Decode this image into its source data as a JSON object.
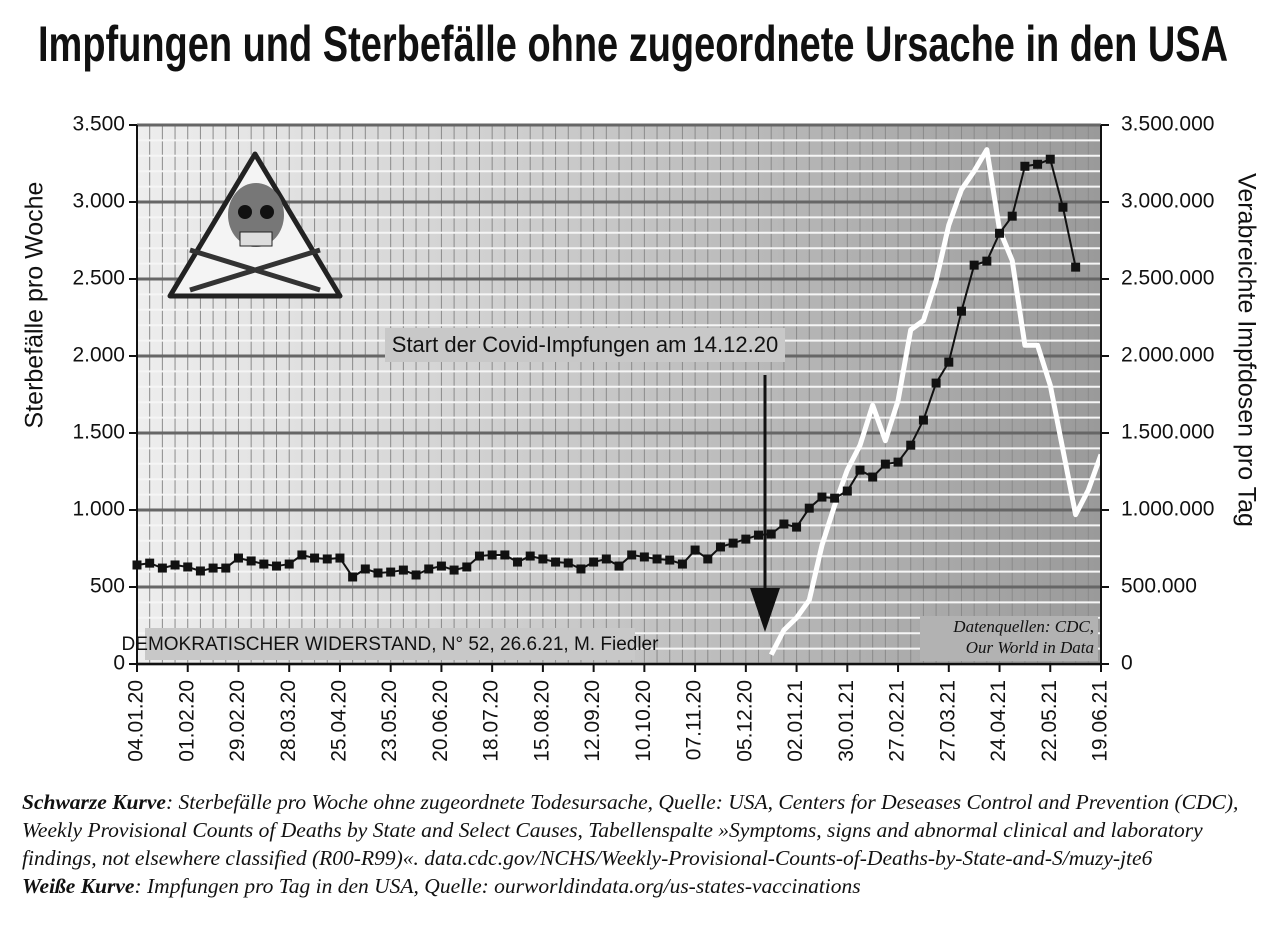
{
  "chart_data": {
    "type": "line",
    "title": "Impfungen und Sterbefälle ohne zugeordnete Ursache in den USA",
    "ylabel": "Sterbefälle pro Woche",
    "y2label": "Verabreichte Impfdosen pro Tag",
    "annotation": "Start der Covid-Impfungen am 14.12.20",
    "credit": "DEMOKRATISCHER WIDERSTAND, N° 52, 26.6.21, M. Fiedler",
    "source": [
      "Datenquellen: CDC,",
      "Our World in Data"
    ],
    "categories": [
      "04.01.20",
      null,
      null,
      null,
      "01.02.20",
      null,
      null,
      null,
      "29.02.20",
      null,
      null,
      null,
      "28.03.20",
      null,
      null,
      null,
      "25.04.20",
      null,
      null,
      null,
      "23.05.20",
      null,
      null,
      null,
      "20.06.20",
      null,
      null,
      null,
      "18.07.20",
      null,
      null,
      null,
      "15.08.20",
      null,
      null,
      null,
      "12.09.20",
      null,
      null,
      null,
      "10.10.20",
      null,
      null,
      null,
      "07.11.20",
      null,
      null,
      null,
      "05.12.20",
      null,
      null,
      null,
      "02.01.21",
      null,
      null,
      null,
      "30.01.21",
      null,
      null,
      null,
      "27.02.21",
      null,
      null,
      null,
      "27.03.21",
      null,
      null,
      null,
      "24.04.21",
      null,
      null,
      null,
      "22.05.21",
      null,
      null,
      null,
      "19.06.21"
    ],
    "series": [
      {
        "name": "Schwarze Kurve",
        "color": "#111111",
        "values": [
          643,
          655,
          623,
          643,
          630,
          604,
          623,
          623,
          688,
          669,
          649,
          636,
          649,
          708,
          688,
          682,
          688,
          565,
          617,
          591,
          597,
          610,
          578,
          617,
          636,
          610,
          630,
          701,
          708,
          708,
          662,
          701,
          682,
          662,
          656,
          617,
          662,
          682,
          636,
          708,
          695,
          682,
          675,
          649,
          740,
          682,
          760,
          785,
          811,
          837,
          844,
          909,
          889,
          1012,
          1084,
          1077,
          1123,
          1259,
          1214,
          1298,
          1311,
          1421,
          1584,
          1824,
          1960,
          2291,
          2590,
          2616,
          2797,
          2908,
          3232,
          3245,
          3278,
          2966,
          2577,
          null,
          null
        ]
      },
      {
        "name": "Weiße Kurve",
        "color": "#ffffff",
        "axis": "y2",
        "values": [
          null,
          null,
          null,
          null,
          null,
          null,
          null,
          null,
          null,
          null,
          null,
          null,
          null,
          null,
          null,
          null,
          null,
          null,
          null,
          null,
          null,
          null,
          null,
          null,
          null,
          null,
          null,
          null,
          null,
          null,
          null,
          null,
          null,
          null,
          null,
          null,
          null,
          null,
          null,
          null,
          null,
          null,
          null,
          null,
          null,
          null,
          null,
          null,
          null,
          null,
          60000,
          220000,
          300000,
          415000,
          770000,
          1030000,
          1260000,
          1420000,
          1680000,
          1450000,
          1710000,
          2170000,
          2230000,
          2490000,
          2850000,
          3080000,
          3200000,
          3340000,
          2820000,
          2620000,
          2070000,
          2070000,
          1810000,
          1390000,
          970000,
          1130000,
          1360000
        ]
      }
    ],
    "ylim": [
      0,
      3500
    ],
    "yticks": [
      0,
      {
        "value": 500,
        "label": "500"
      },
      {
        "value": 1000,
        "label": "1.000"
      },
      {
        "value": 1500,
        "label": "1.500"
      },
      {
        "value": 2000,
        "label": "2.000"
      },
      {
        "value": 2500,
        "label": "2.500"
      },
      {
        "value": 3000,
        "label": "3.000"
      },
      {
        "value": 3500,
        "label": "3.500"
      }
    ],
    "y2lim": [
      0,
      3500000
    ],
    "y2ticks": [
      0,
      {
        "value": 500000,
        "label": "500.000"
      },
      {
        "value": 1000000,
        "label": "1.000.000"
      },
      {
        "value": 1500000,
        "label": "1.500.000"
      },
      {
        "value": 2000000,
        "label": "2.000.000"
      },
      {
        "value": 2500000,
        "label": "2.500.000"
      },
      {
        "value": 3000000,
        "label": "3.000.000"
      },
      {
        "value": 3500000,
        "label": "3.500.000"
      }
    ],
    "grid": true
  },
  "caption": [
    {
      "label": "Schwarze Kurve",
      "text": ": Sterbefälle pro Woche ohne zugeordnete Todesursache, Quelle: USA, Centers for Deseases Control and Prevention (CDC), Weekly Provisional Counts of Deaths by State and Select Causes, Tabellenspalte »Symptoms, signs and abnormal clinical and laboratory findings, not elsewhere classified (R00-R99)«. data.cdc.gov/NCHS/Weekly-Provisional-Counts-of-Deaths-by-State-and-S/muzy-jte6"
    },
    {
      "label": "Weiße Kurve",
      "text": ": Impfungen pro Tag in den USA, Quelle: ourworldindata.org/us-states-vaccinations"
    }
  ]
}
